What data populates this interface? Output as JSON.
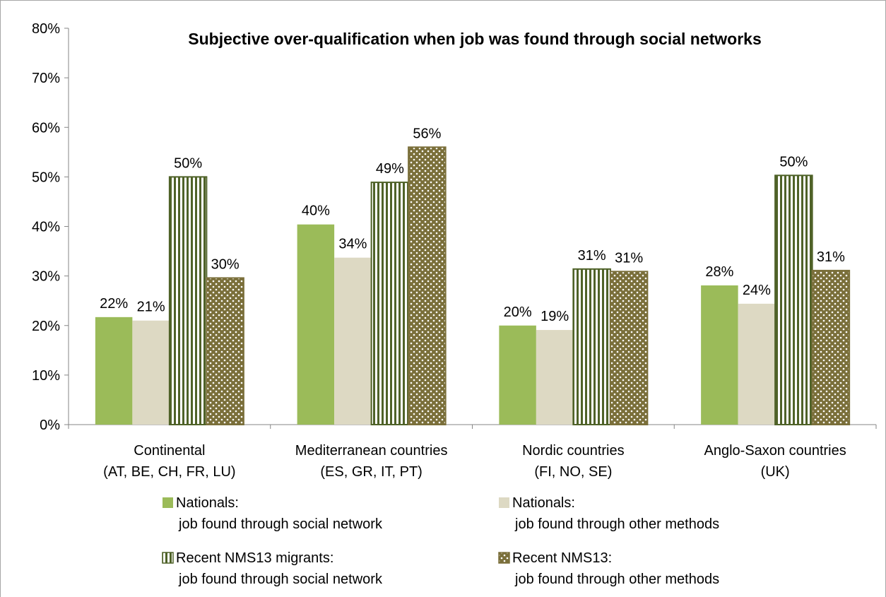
{
  "chart_data": {
    "type": "bar",
    "title": "Subjective over-qualification when job was found through social networks",
    "xlabel": "",
    "ylabel": "",
    "ylim": [
      0,
      80
    ],
    "yticks": [
      "0%",
      "10%",
      "20%",
      "30%",
      "40%",
      "50%",
      "60%",
      "70%",
      "80%"
    ],
    "grid": false,
    "legend_position": "bottom",
    "categories": [
      [
        "Continental",
        "(AT, BE, CH, FR, LU)"
      ],
      [
        "Mediterranean countries",
        "(ES, GR, IT, PT)"
      ],
      [
        "Nordic countries",
        "(FI, NO, SE)"
      ],
      [
        "Anglo-Saxon countries",
        "(UK)"
      ]
    ],
    "series": [
      {
        "name": [
          "Nationals:",
          "job found through social network"
        ],
        "values": [
          21.7,
          40.4,
          20.0,
          28.1
        ],
        "labels": [
          "22%",
          "40%",
          "20%",
          "28%"
        ],
        "color": "#9bbb59",
        "pattern": "solid"
      },
      {
        "name": [
          "Nationals:",
          "job found through other methods"
        ],
        "values": [
          21.0,
          33.7,
          19.1,
          24.4
        ],
        "labels": [
          "21%",
          "34%",
          "19%",
          "24%"
        ],
        "color": "#ddd9c3",
        "pattern": "solid"
      },
      {
        "name": [
          "Recent NMS13 migrants:",
          "job found through social network"
        ],
        "values": [
          50.0,
          48.9,
          31.4,
          50.3
        ],
        "labels": [
          "50%",
          "49%",
          "31%",
          "50%"
        ],
        "color": "#4f6228",
        "pattern": "vertical-stripes"
      },
      {
        "name": [
          "Recent NMS13:",
          "job found through other methods"
        ],
        "values": [
          29.6,
          56.0,
          30.9,
          31.1
        ],
        "labels": [
          "30%",
          "56%",
          "31%",
          "31%"
        ],
        "color": "#7a6f3a",
        "pattern": "dots"
      }
    ]
  }
}
